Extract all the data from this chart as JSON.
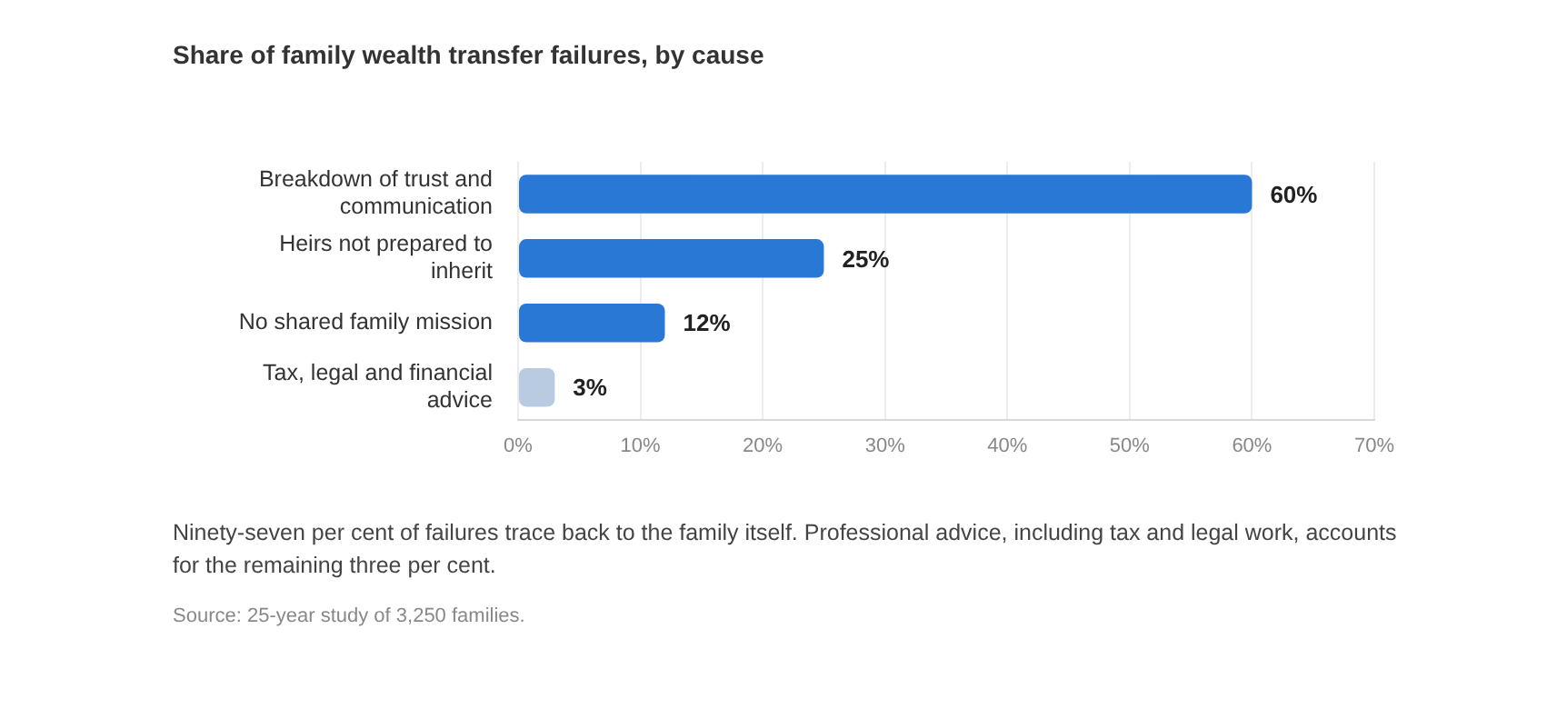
{
  "chart_data": {
    "type": "bar",
    "orientation": "horizontal",
    "title": "Share of family wealth transfer failures, by cause",
    "categories": [
      "Breakdown of trust and communication",
      "Heirs not prepared to inherit",
      "No shared family mission",
      "Tax, legal and financial advice"
    ],
    "values": [
      60,
      25,
      12,
      3
    ],
    "value_labels": [
      "60%",
      "25%",
      "12%",
      "3%"
    ],
    "colors": [
      "#2a78d6",
      "#2a78d6",
      "#2a78d6",
      "#b9cbe0"
    ],
    "xlim": [
      0,
      70
    ],
    "xticks": [
      {
        "value": 0,
        "label": "0%"
      },
      {
        "value": 10,
        "label": "10%"
      },
      {
        "value": 20,
        "label": "20%"
      },
      {
        "value": 30,
        "label": "30%"
      },
      {
        "value": 40,
        "label": "40%"
      },
      {
        "value": 50,
        "label": "50%"
      },
      {
        "value": 60,
        "label": "60%"
      },
      {
        "value": 70,
        "label": "70%"
      }
    ],
    "grid": "x",
    "legend": false,
    "annotations": [
      "Ninety-seven per cent of failures trace back to the family itself. Professional advice, including tax and legal work, accounts for the remaining three per cent.",
      "Source: 25-year study of 3,250 families."
    ]
  }
}
